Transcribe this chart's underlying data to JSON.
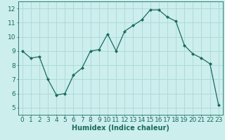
{
  "x": [
    0,
    1,
    2,
    3,
    4,
    5,
    6,
    7,
    8,
    9,
    10,
    11,
    12,
    13,
    14,
    15,
    16,
    17,
    18,
    19,
    20,
    21,
    22,
    23
  ],
  "y": [
    9.0,
    8.5,
    8.6,
    7.0,
    5.9,
    6.0,
    7.3,
    7.8,
    9.0,
    9.1,
    10.2,
    9.0,
    10.4,
    10.8,
    11.2,
    11.9,
    11.9,
    11.4,
    11.1,
    9.4,
    8.8,
    8.5,
    8.1,
    5.2
  ],
  "xlabel": "Humidex (Indice chaleur)",
  "ylim": [
    4.5,
    12.5
  ],
  "xlim": [
    -0.5,
    23.5
  ],
  "yticks": [
    5,
    6,
    7,
    8,
    9,
    10,
    11,
    12
  ],
  "xticks": [
    0,
    1,
    2,
    3,
    4,
    5,
    6,
    7,
    8,
    9,
    10,
    11,
    12,
    13,
    14,
    15,
    16,
    17,
    18,
    19,
    20,
    21,
    22,
    23
  ],
  "line_color": "#1a6b5e",
  "marker_color": "#1a6b5e",
  "bg_color": "#cceeed",
  "grid_color": "#aad8d5",
  "xlabel_fontsize": 7,
  "tick_fontsize": 6.5
}
